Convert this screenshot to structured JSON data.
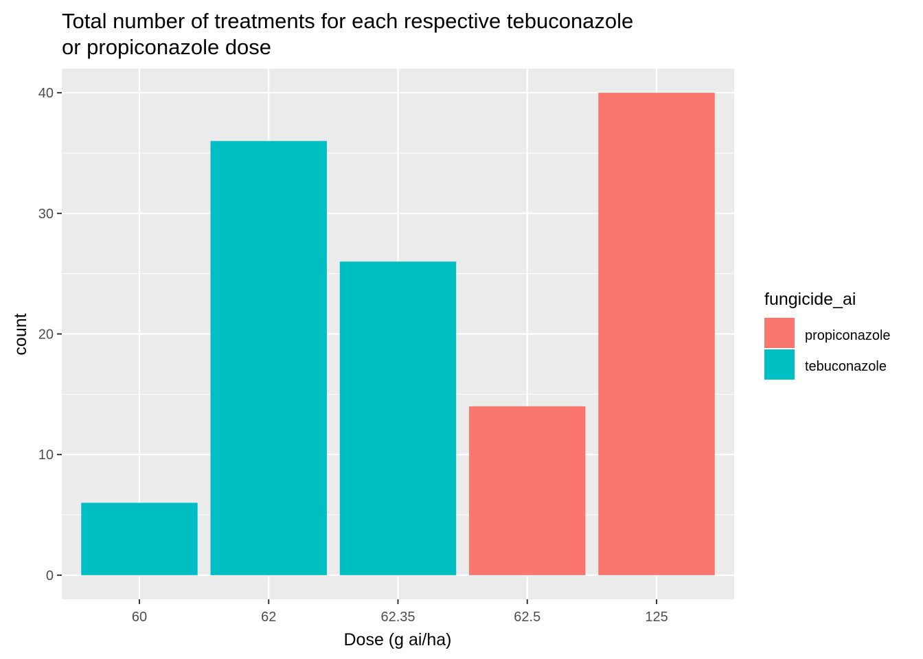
{
  "chart_data": {
    "type": "bar",
    "title_lines": [
      "Total number of treatments for each respective tebuconazole",
      "or propiconazole dose"
    ],
    "xlabel": "Dose (g ai/ha)",
    "ylabel": "count",
    "categories": [
      "60",
      "62",
      "62.35",
      "62.5",
      "125"
    ],
    "values": [
      6,
      36,
      26,
      14,
      40
    ],
    "bar_groups": [
      "tebuconazole",
      "tebuconazole",
      "tebuconazole",
      "propiconazole",
      "propiconazole"
    ],
    "ylim": [
      -2,
      42
    ],
    "yticks": [
      0,
      10,
      20,
      30,
      40
    ],
    "grid": true,
    "legend_position": "right",
    "legend": {
      "title": "fungicide_ai",
      "entries": [
        {
          "name": "propiconazole",
          "color": "#F8766D"
        },
        {
          "name": "tebuconazole",
          "color": "#00BFC4"
        }
      ]
    },
    "panel_background": "#EBEBEB",
    "grid_color": "#FFFFFF"
  }
}
